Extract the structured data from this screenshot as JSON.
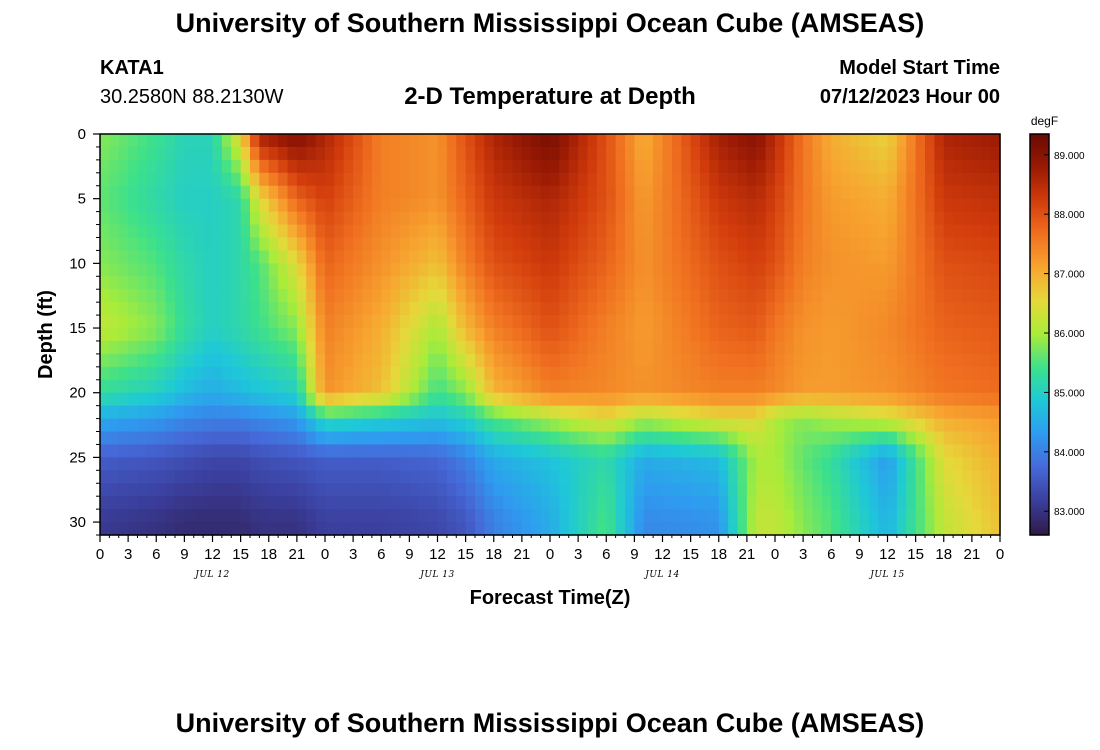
{
  "header": {
    "title": "University of Southern Mississippi Ocean Cube (AMSEAS)",
    "station": "KATA1",
    "coordinates": "30.2580N  88.2130W",
    "subtitle": "2-D Temperature at Depth",
    "model_start_label": "Model Start Time",
    "model_start_value": "07/12/2023 Hour 00",
    "footer_title": "University of Southern Mississippi Ocean Cube (AMSEAS)"
  },
  "chart_data": {
    "type": "heatmap",
    "title": "2-D Temperature at Depth",
    "xlabel": "Forecast Time(Z)",
    "ylabel": "Depth (ft)",
    "x_range_hours": [
      0,
      96
    ],
    "x_step_hours": 3,
    "x_tick_labels": [
      "0",
      "3",
      "6",
      "9",
      "12",
      "15",
      "18",
      "21",
      "0",
      "3",
      "6",
      "9",
      "12",
      "15",
      "18",
      "21",
      "0",
      "3",
      "6",
      "9",
      "12",
      "15",
      "18",
      "21",
      "0",
      "3",
      "6",
      "9",
      "12",
      "15",
      "18",
      "21",
      "0"
    ],
    "day_labels": [
      "JUL 12",
      "JUL 13",
      "JUL 14",
      "JUL 15"
    ],
    "ylim": [
      0,
      31
    ],
    "y_ticks": [
      0,
      5,
      10,
      15,
      20,
      25,
      30
    ],
    "y_tick_labels": [
      "0",
      "5",
      "10",
      "15",
      "20",
      "25",
      "30"
    ],
    "colorbar": {
      "unit": "degF",
      "range": [
        82.6,
        89.35
      ],
      "ticks": [
        83,
        84,
        85,
        86,
        87,
        88,
        89
      ],
      "tick_labels": [
        "83.000",
        "84.000",
        "85.000",
        "86.000",
        "87.000",
        "88.000",
        "89.000"
      ],
      "colors": [
        "#2e1a47",
        "#3a3d9a",
        "#4668d8",
        "#2f9af0",
        "#1ec8d8",
        "#3ce08c",
        "#a8ec3a",
        "#e6d83a",
        "#f7a530",
        "#f07020",
        "#d23c0c",
        "#9a1a04",
        "#6a0a02"
      ]
    },
    "control_points": {
      "times": [
        0,
        6,
        9,
        12,
        15,
        17,
        21,
        24,
        30,
        36,
        39,
        42,
        48,
        54,
        58,
        66,
        70,
        72,
        75,
        78,
        84,
        90,
        96
      ],
      "depths": [
        0,
        5,
        10,
        15,
        20,
        22,
        25,
        30
      ],
      "values": [
        [
          85.8,
          85.6,
          85.8,
          86.2,
          85.3,
          84.5,
          83.6,
          83.1
        ],
        [
          85.4,
          85.2,
          85.5,
          85.8,
          85.0,
          84.3,
          83.5,
          83.0
        ],
        [
          85.1,
          85.0,
          85.2,
          85.3,
          84.7,
          84.1,
          83.4,
          82.9
        ],
        [
          85.1,
          85.0,
          85.0,
          85.0,
          84.5,
          84.0,
          83.3,
          82.9
        ],
        [
          86.6,
          85.2,
          85.2,
          85.2,
          84.7,
          84.0,
          83.3,
          82.9
        ],
        [
          88.7,
          86.5,
          85.5,
          85.4,
          84.8,
          84.1,
          83.4,
          83.0
        ],
        [
          89.1,
          87.8,
          86.5,
          85.8,
          85.0,
          84.3,
          83.5,
          83.0
        ],
        [
          88.6,
          88.2,
          87.8,
          87.5,
          87.3,
          85.2,
          83.6,
          83.2
        ],
        [
          87.5,
          87.5,
          87.3,
          87.0,
          86.8,
          85.0,
          83.6,
          83.2
        ],
        [
          87.3,
          87.3,
          86.8,
          86.0,
          85.4,
          84.8,
          83.7,
          83.3
        ],
        [
          88.0,
          87.8,
          87.5,
          86.9,
          85.8,
          85.0,
          84.0,
          83.5
        ],
        [
          88.6,
          88.3,
          88.0,
          87.5,
          86.9,
          85.5,
          84.5,
          84.0
        ],
        [
          89.2,
          88.6,
          88.3,
          88.0,
          87.5,
          86.0,
          84.8,
          84.5
        ],
        [
          88.0,
          88.0,
          87.8,
          87.5,
          87.4,
          86.5,
          85.2,
          85.5
        ],
        [
          87.0,
          87.2,
          87.3,
          87.2,
          87.3,
          86.0,
          84.5,
          84.1
        ],
        [
          88.7,
          88.3,
          88.0,
          87.8,
          87.5,
          86.5,
          84.7,
          84.2
        ],
        [
          89.0,
          88.5,
          88.2,
          87.9,
          87.5,
          86.5,
          86.0,
          86.2
        ],
        [
          88.5,
          88.2,
          88.0,
          87.6,
          87.4,
          86.0,
          86.0,
          86.2
        ],
        [
          87.6,
          87.6,
          87.5,
          87.3,
          87.2,
          85.8,
          85.6,
          85.8
        ],
        [
          87.0,
          87.2,
          87.3,
          87.2,
          87.2,
          86.0,
          85.3,
          85.5
        ],
        [
          86.6,
          87.0,
          87.2,
          87.4,
          87.3,
          86.3,
          84.3,
          84.6
        ],
        [
          88.6,
          88.3,
          88.0,
          87.8,
          87.6,
          87.0,
          86.5,
          86.2
        ],
        [
          88.8,
          88.4,
          88.1,
          87.9,
          87.7,
          87.2,
          87.0,
          86.8
        ]
      ]
    }
  }
}
